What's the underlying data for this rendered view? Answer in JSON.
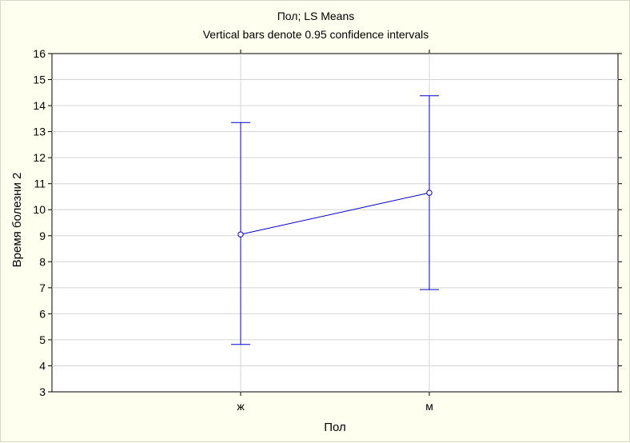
{
  "chart_data": {
    "type": "line",
    "title": "Пол; LS Means",
    "subtitle": "Vertical bars denote 0.95 confidence intervals",
    "xlabel": "Пол",
    "ylabel": "Время болезни 2",
    "categories": [
      "ж",
      "м"
    ],
    "ylim": [
      3,
      16
    ],
    "yticks": [
      3,
      4,
      5,
      6,
      7,
      8,
      9,
      10,
      11,
      12,
      13,
      14,
      15,
      16
    ],
    "grid": true,
    "series": [
      {
        "means": [
          9.05,
          10.65
        ],
        "lower": [
          4.82,
          6.93
        ],
        "upper": [
          13.35,
          14.38
        ]
      }
    ],
    "colors": {
      "series": "#0000cc",
      "grid": "#d4d4d4",
      "plot_bg": "#ffffff",
      "page_bg": "#fffff0"
    }
  }
}
